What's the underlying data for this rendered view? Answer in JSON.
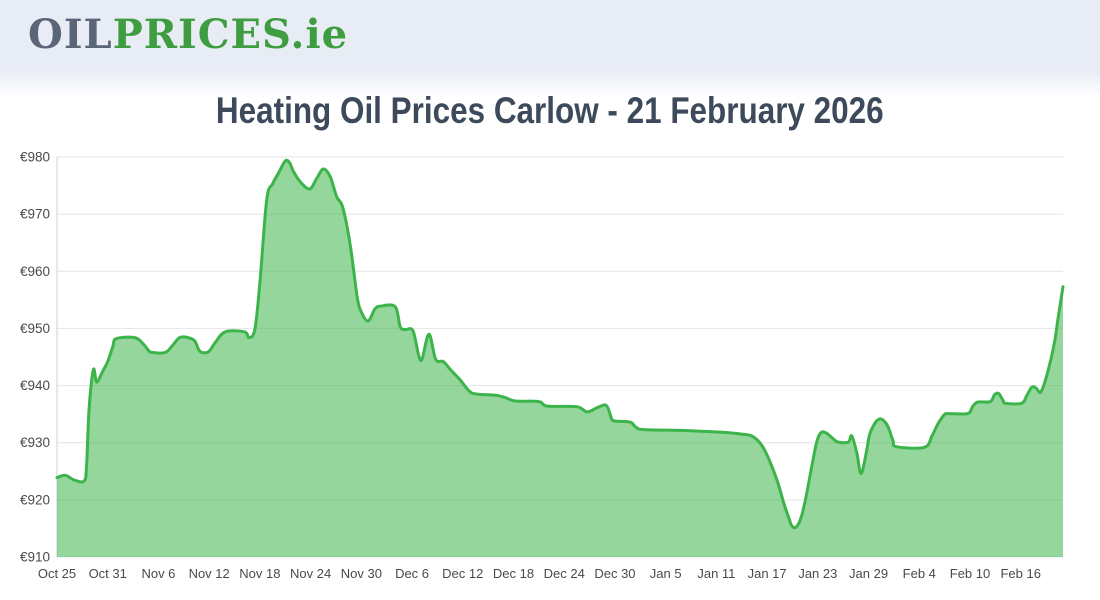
{
  "header": {
    "logo": {
      "oil": "OIL",
      "prices": "PRICES",
      "dot_ie": ".ie",
      "oil_color": "#5a6577",
      "green_color": "#3f9d41"
    }
  },
  "title": {
    "text": "Heating Oil Prices Carlow - 21 February 2026",
    "color": "#3d4a5c"
  },
  "chart_data": {
    "type": "area",
    "title": "Heating Oil Prices Carlow - 21 February 2026",
    "x_axis": {
      "tick_labels": [
        "Oct 25",
        "Oct 31",
        "Nov 6",
        "Nov 12",
        "Nov 18",
        "Nov 24",
        "Nov 30",
        "Dec 6",
        "Dec 12",
        "Dec 18",
        "Dec 24",
        "Dec 30",
        "Jan 5",
        "Jan 11",
        "Jan 17",
        "Jan 23",
        "Jan 29",
        "Feb 4",
        "Feb 10",
        "Feb 16"
      ],
      "tick_interval_days": 6,
      "total_days": 119,
      "start_label": "Oct 25",
      "end_label": "Feb 21"
    },
    "y_axis": {
      "prefix": "€",
      "ticks": [
        910,
        920,
        930,
        940,
        950,
        960,
        970,
        980
      ],
      "min": 910,
      "max": 980
    },
    "grid": true,
    "legend": false,
    "colors": {
      "line": "#3cb44a",
      "fill": "rgba(60,180,74,0.55)",
      "grid": "#e4e4e4",
      "axis": "#cfcfcf",
      "tick_text": "#4a4a4a"
    },
    "series": [
      {
        "points": [
          [
            0,
            923.9
          ],
          [
            1,
            924.3
          ],
          [
            2,
            923.5
          ],
          [
            3.2,
            923.3
          ],
          [
            3.5,
            926.0
          ],
          [
            3.8,
            936.0
          ],
          [
            4.3,
            942.8
          ],
          [
            4.7,
            940.6
          ],
          [
            5.4,
            942.5
          ],
          [
            6.0,
            944.2
          ],
          [
            6.6,
            946.8
          ],
          [
            7.0,
            948.2
          ],
          [
            9.2,
            948.4
          ],
          [
            10.2,
            947.3
          ],
          [
            10.8,
            946.2
          ],
          [
            11.2,
            945.8
          ],
          [
            12.8,
            945.8
          ],
          [
            13.6,
            946.9
          ],
          [
            14.5,
            948.4
          ],
          [
            15.5,
            948.4
          ],
          [
            16.3,
            947.8
          ],
          [
            16.9,
            946.0
          ],
          [
            17.9,
            945.9
          ],
          [
            18.7,
            947.5
          ],
          [
            19.9,
            949.4
          ],
          [
            22.2,
            949.4
          ],
          [
            22.7,
            948.4
          ],
          [
            23.4,
            949.8
          ],
          [
            24.0,
            958.0
          ],
          [
            24.8,
            972.5
          ],
          [
            25.5,
            975.3
          ],
          [
            26.2,
            977.2
          ],
          [
            27.0,
            979.3
          ],
          [
            27.5,
            979.0
          ],
          [
            28.0,
            977.4
          ],
          [
            28.8,
            975.6
          ],
          [
            29.9,
            974.4
          ],
          [
            30.7,
            976.2
          ],
          [
            31.5,
            977.9
          ],
          [
            32.3,
            976.6
          ],
          [
            33.1,
            973.0
          ],
          [
            33.8,
            971.2
          ],
          [
            34.7,
            964.5
          ],
          [
            35.5,
            955.6
          ],
          [
            36.0,
            952.9
          ],
          [
            36.8,
            951.3
          ],
          [
            37.6,
            953.4
          ],
          [
            38.3,
            953.9
          ],
          [
            40.0,
            953.8
          ],
          [
            40.6,
            950.3
          ],
          [
            41.2,
            949.8
          ],
          [
            42.1,
            949.6
          ],
          [
            42.8,
            945.2
          ],
          [
            43.2,
            944.7
          ],
          [
            44.0,
            949.0
          ],
          [
            44.8,
            944.6
          ],
          [
            45.7,
            944.2
          ],
          [
            46.6,
            942.7
          ],
          [
            47.7,
            941.0
          ],
          [
            48.8,
            939.0
          ],
          [
            49.7,
            938.5
          ],
          [
            52.0,
            938.3
          ],
          [
            53.2,
            937.8
          ],
          [
            54.2,
            937.3
          ],
          [
            57.0,
            937.2
          ],
          [
            58.0,
            936.4
          ],
          [
            61.5,
            936.3
          ],
          [
            62.7,
            935.4
          ],
          [
            64.0,
            936.2
          ],
          [
            65.0,
            936.5
          ],
          [
            65.6,
            934.2
          ],
          [
            66.0,
            933.8
          ],
          [
            67.8,
            933.6
          ],
          [
            68.5,
            932.7
          ],
          [
            69.5,
            932.3
          ],
          [
            74.9,
            932.1
          ],
          [
            79.0,
            931.8
          ],
          [
            81.0,
            931.5
          ],
          [
            82.3,
            931.1
          ],
          [
            83.4,
            929.5
          ],
          [
            84.3,
            926.8
          ],
          [
            85.2,
            923.3
          ],
          [
            86.0,
            919.3
          ],
          [
            86.6,
            916.7
          ],
          [
            86.9,
            915.5
          ],
          [
            87.4,
            915.2
          ],
          [
            88.0,
            916.8
          ],
          [
            88.6,
            920.5
          ],
          [
            89.3,
            926.0
          ],
          [
            89.9,
            930.3
          ],
          [
            90.4,
            931.8
          ],
          [
            91.0,
            931.7
          ],
          [
            91.8,
            930.7
          ],
          [
            92.4,
            930.1
          ],
          [
            93.6,
            930.1
          ],
          [
            94.0,
            931.2
          ],
          [
            94.6,
            928.3
          ],
          [
            95.1,
            924.6
          ],
          [
            95.7,
            928.0
          ],
          [
            96.1,
            931.3
          ],
          [
            96.7,
            933.3
          ],
          [
            97.2,
            934.1
          ],
          [
            97.7,
            934.0
          ],
          [
            98.3,
            932.8
          ],
          [
            98.9,
            930.3
          ],
          [
            99.3,
            929.3
          ],
          [
            102.6,
            929.2
          ],
          [
            103.5,
            931.2
          ],
          [
            104.2,
            933.3
          ],
          [
            104.9,
            934.8
          ],
          [
            105.4,
            935.1
          ],
          [
            107.7,
            935.1
          ],
          [
            108.3,
            936.3
          ],
          [
            108.9,
            937.1
          ],
          [
            110.4,
            937.2
          ],
          [
            110.9,
            938.4
          ],
          [
            111.4,
            938.6
          ],
          [
            111.9,
            937.4
          ],
          [
            112.2,
            936.9
          ],
          [
            114.1,
            936.9
          ],
          [
            114.7,
            938.2
          ],
          [
            115.3,
            939.7
          ],
          [
            115.8,
            939.6
          ],
          [
            116.3,
            938.8
          ],
          [
            116.8,
            940.4
          ],
          [
            117.4,
            943.6
          ],
          [
            118.0,
            947.6
          ],
          [
            118.4,
            951.6
          ],
          [
            119,
            957.3
          ]
        ]
      }
    ]
  }
}
